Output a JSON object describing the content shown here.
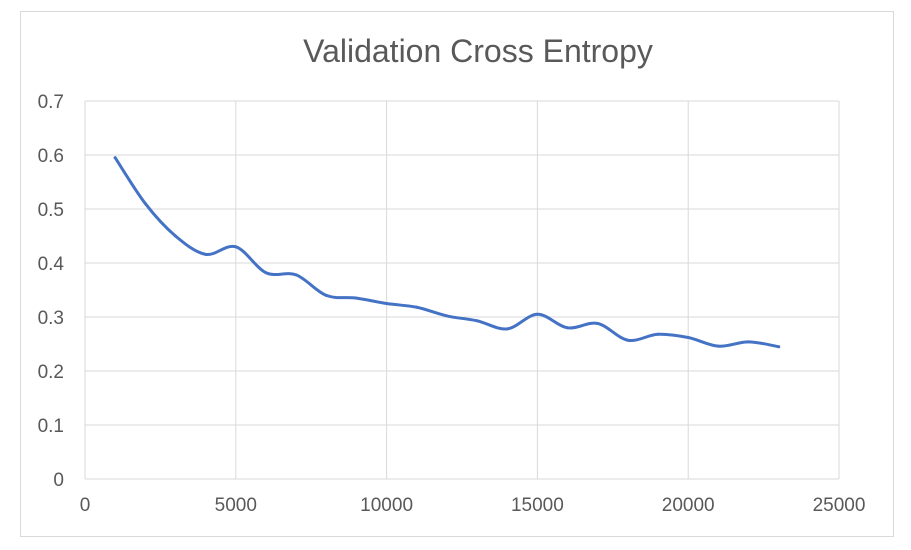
{
  "chart_data": {
    "type": "line",
    "title": "Validation Cross Entropy",
    "xlabel": "",
    "ylabel": "",
    "xlim": [
      0,
      25000
    ],
    "ylim": [
      0,
      0.7
    ],
    "x_ticks": [
      0,
      5000,
      10000,
      15000,
      20000,
      25000
    ],
    "y_ticks": [
      0,
      0.1,
      0.2,
      0.3,
      0.4,
      0.5,
      0.6,
      0.7
    ],
    "x_tick_labels": [
      "0",
      "5000",
      "10000",
      "15000",
      "20000",
      "25000"
    ],
    "y_tick_labels": [
      "0",
      "0.1",
      "0.2",
      "0.3",
      "0.4",
      "0.5",
      "0.6",
      "0.7"
    ],
    "grid": true,
    "legend": "none",
    "series": [
      {
        "color": "#4472c4",
        "x": [
          1000,
          2000,
          3000,
          4000,
          5000,
          6000,
          7000,
          8000,
          9000,
          10000,
          11000,
          12000,
          13000,
          14000,
          15000,
          16000,
          17000,
          18000,
          19000,
          20000,
          21000,
          22000,
          23000
        ],
        "y": [
          0.595,
          0.51,
          0.45,
          0.416,
          0.43,
          0.382,
          0.378,
          0.34,
          0.335,
          0.325,
          0.318,
          0.302,
          0.293,
          0.278,
          0.305,
          0.28,
          0.288,
          0.257,
          0.268,
          0.262,
          0.246,
          0.254,
          0.245
        ]
      }
    ]
  }
}
